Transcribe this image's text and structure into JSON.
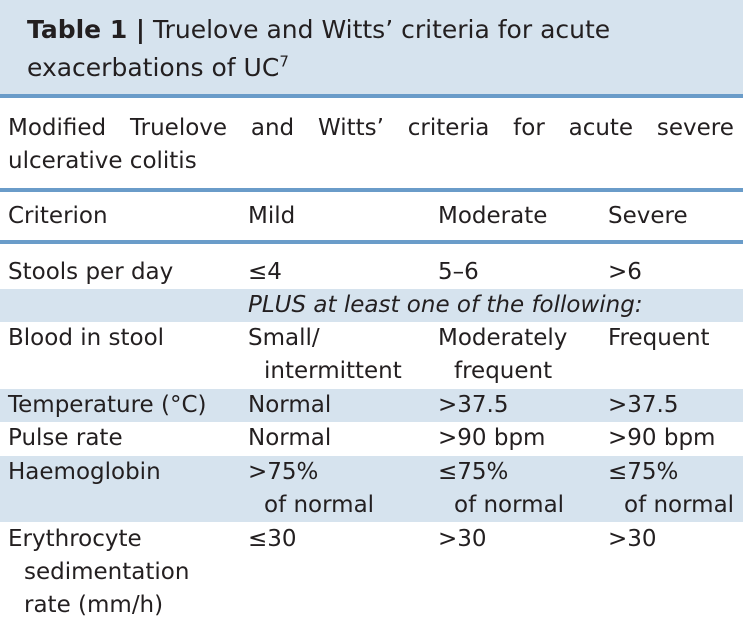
{
  "title": {
    "label": "Table 1 |",
    "line1_text": "Truelove and Witts’ criteria for acute",
    "line2_text": "exacerbations of UC",
    "ref": "7"
  },
  "subtitle": {
    "words": [
      "Modified",
      "Truelove",
      "and",
      "Witts’",
      "criteria",
      "for",
      "acute",
      "severe"
    ],
    "line2": "ulcerative colitis"
  },
  "table": {
    "headers": [
      "Criterion",
      "Mild",
      "Moderate",
      "Severe"
    ],
    "stools": {
      "criterion": "Stools per day",
      "mild": "≤4",
      "moderate": "5–6",
      "severe": ">6"
    },
    "plus_note": "PLUS at least one of the following:",
    "blood": {
      "criterion": "Blood in stool",
      "mild": [
        "Small/",
        "intermittent"
      ],
      "moderate": [
        "Moderately",
        "frequent"
      ],
      "severe": "Frequent"
    },
    "temperature": {
      "criterion": "Temperature (°C)",
      "mild": "Normal",
      "moderate": ">37.5",
      "severe": ">37.5"
    },
    "pulse": {
      "criterion": "Pulse rate",
      "mild": "Normal",
      "moderate": ">90 bpm",
      "severe": ">90 bpm"
    },
    "haemoglobin": {
      "criterion": "Haemoglobin",
      "mild": [
        ">75%",
        "of normal"
      ],
      "moderate": [
        "≤75%",
        "of normal"
      ],
      "severe": [
        "≤75%",
        "of normal"
      ]
    },
    "esr": {
      "criterion": [
        "Erythrocyte",
        "sedimentation",
        "rate (mm/h)"
      ],
      "mild": "≤30",
      "moderate": ">30",
      "severe": ">30"
    }
  }
}
